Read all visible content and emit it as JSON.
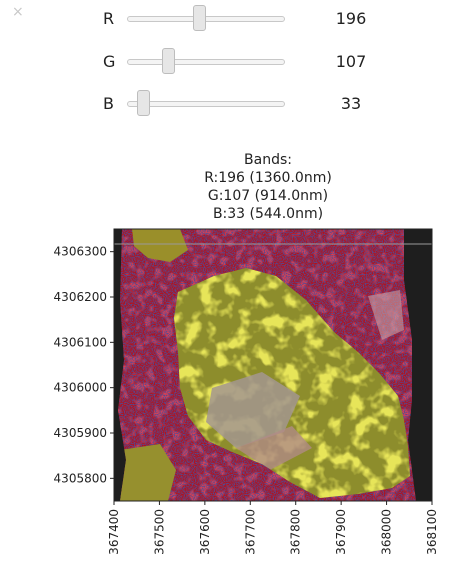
{
  "close_label": "×",
  "sliders": [
    {
      "label": "R",
      "value": "196",
      "fraction": 0.46
    },
    {
      "label": "G",
      "value": "107",
      "fraction": 0.26
    },
    {
      "label": "B",
      "value": "33",
      "fraction": 0.1
    }
  ],
  "figure": {
    "title_lines": [
      "Bands:",
      "R:196 (1360.0nm)",
      "G:107 (914.0nm)",
      "B:33 (544.0nm)"
    ]
  },
  "chart_data": {
    "type": "heatmap",
    "title": "Bands:\nR:196 (1360.0nm)\nG:107 (914.0nm)\nB:33 (544.0nm)",
    "xlim": [
      367400,
      368100
    ],
    "ylim": [
      4305750,
      4306350
    ],
    "xticks": [
      367400,
      367500,
      367600,
      367700,
      367800,
      367900,
      368000,
      368100
    ],
    "yticks": [
      4305800,
      4305900,
      4306000,
      4306100,
      4306200,
      4306300
    ],
    "xtick_labels": [
      "367400",
      "367500",
      "367600",
      "367700",
      "367800",
      "367900",
      "368000",
      "368100"
    ],
    "ytick_labels": [
      "4305800",
      "4305900",
      "4306000",
      "4306100",
      "4306200",
      "4306300"
    ],
    "background": "#1e1e1e",
    "colors": {
      "vegetation": "#a99a2a",
      "soil": "#c0101a",
      "noise": "#15124a",
      "built": "#a3968f"
    }
  }
}
